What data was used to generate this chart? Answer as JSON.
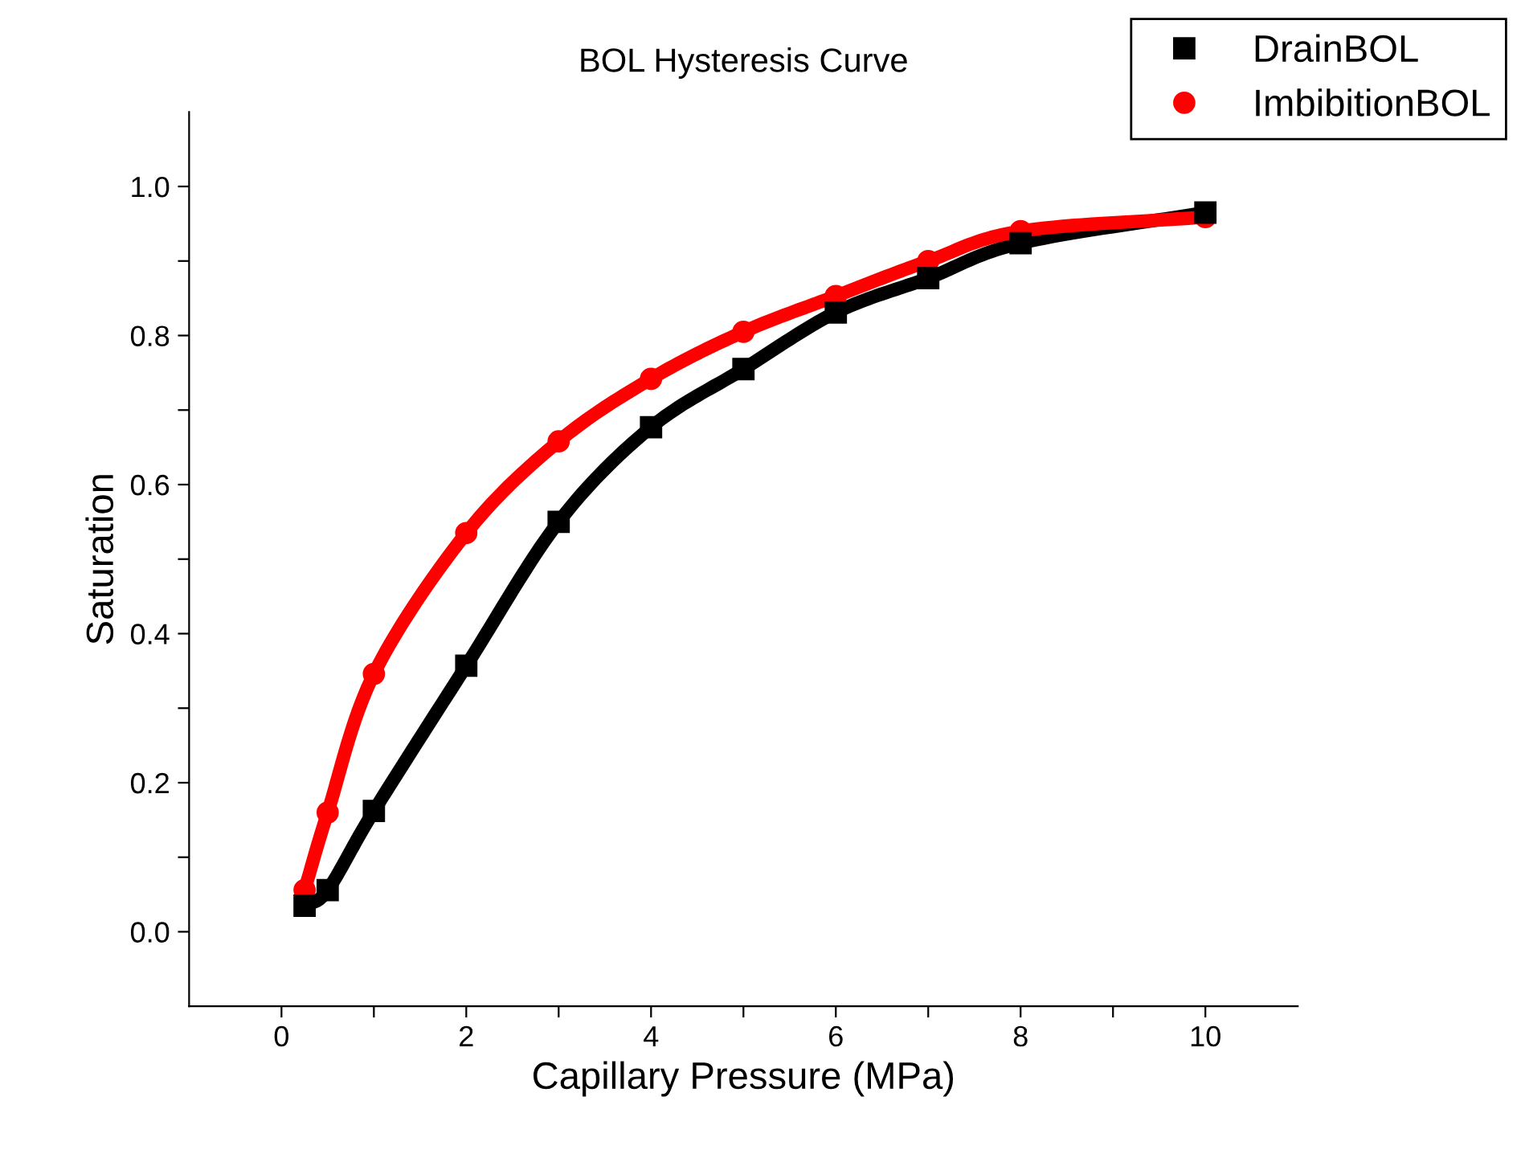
{
  "chart_data": {
    "type": "line",
    "title": "BOL Hysteresis Curve",
    "xlabel": "Capillary Pressure (MPa)",
    "ylabel": "Saturation",
    "series": [
      {
        "name": "DrainBOL",
        "color": "#000000",
        "marker": "square",
        "x": [
          0.25,
          0.5,
          1,
          2,
          3,
          4,
          5,
          6,
          7,
          8,
          10
        ],
        "values": [
          0.035,
          0.056,
          0.162,
          0.357,
          0.55,
          0.677,
          0.755,
          0.831,
          0.877,
          0.924,
          0.965
        ]
      },
      {
        "name": "ImbibitionBOL",
        "color": "#ff0000",
        "marker": "circle",
        "x": [
          0.25,
          0.5,
          1,
          2,
          3,
          4,
          5,
          6,
          7,
          8,
          10
        ],
        "values": [
          0.056,
          0.16,
          0.346,
          0.535,
          0.658,
          0.742,
          0.805,
          0.853,
          0.9,
          0.94,
          0.959
        ]
      }
    ],
    "xlim": [
      -1,
      11
    ],
    "ylim": [
      -0.1,
      1.1
    ],
    "xticks": [
      0,
      {
        "value": 1,
        "label": null
      },
      2,
      {
        "value": 3,
        "label": null
      },
      4,
      {
        "value": 5,
        "label": null
      },
      6,
      {
        "value": 7,
        "label": null
      },
      8,
      {
        "value": 9,
        "label": null
      },
      10
    ],
    "yticks": [
      {
        "value": 0,
        "label": "0.0"
      },
      {
        "value": 0.1,
        "label": null
      },
      {
        "value": 0.2,
        "label": "0.2"
      },
      {
        "value": 0.3,
        "label": null
      },
      {
        "value": 0.4,
        "label": "0.4"
      },
      {
        "value": 0.5,
        "label": null
      },
      {
        "value": 0.6,
        "label": "0.6"
      },
      {
        "value": 0.7,
        "label": null
      },
      {
        "value": 0.8,
        "label": "0.8"
      },
      {
        "value": 0.9,
        "label": null
      },
      {
        "value": 1,
        "label": "1.0"
      }
    ],
    "grid": false,
    "legend": "top right",
    "line_style": "solid"
  }
}
